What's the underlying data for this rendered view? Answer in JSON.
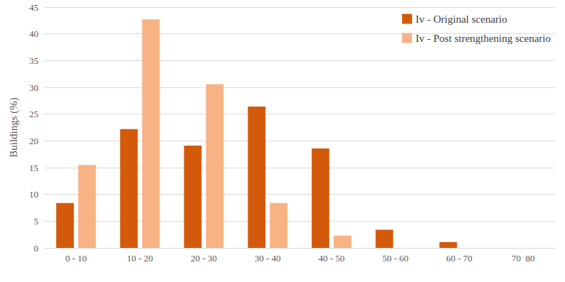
{
  "chart_data": {
    "type": "bar",
    "y_label": "Buildings (%)",
    "categories": [
      "0 - 10",
      "10 - 20",
      "20 - 30",
      "30 - 40",
      "40 - 50",
      "50 - 60",
      "60 - 70",
      "70  80"
    ],
    "series": [
      {
        "name": "Iv - Original scenario",
        "color": "#d35a0a",
        "values": [
          8.4,
          22.2,
          19.1,
          26.4,
          18.6,
          3.4,
          1.1,
          0
        ]
      },
      {
        "name": "Iv - Post strengthening scenario",
        "color": "#f7b384",
        "values": [
          15.5,
          42.7,
          30.6,
          8.4,
          2.3,
          0,
          0,
          0
        ]
      }
    ],
    "ylim": [
      0,
      45
    ],
    "yticks": [
      0,
      5,
      10,
      15,
      20,
      25,
      30,
      35,
      40,
      45
    ],
    "grid": true,
    "legend": "upper right"
  }
}
